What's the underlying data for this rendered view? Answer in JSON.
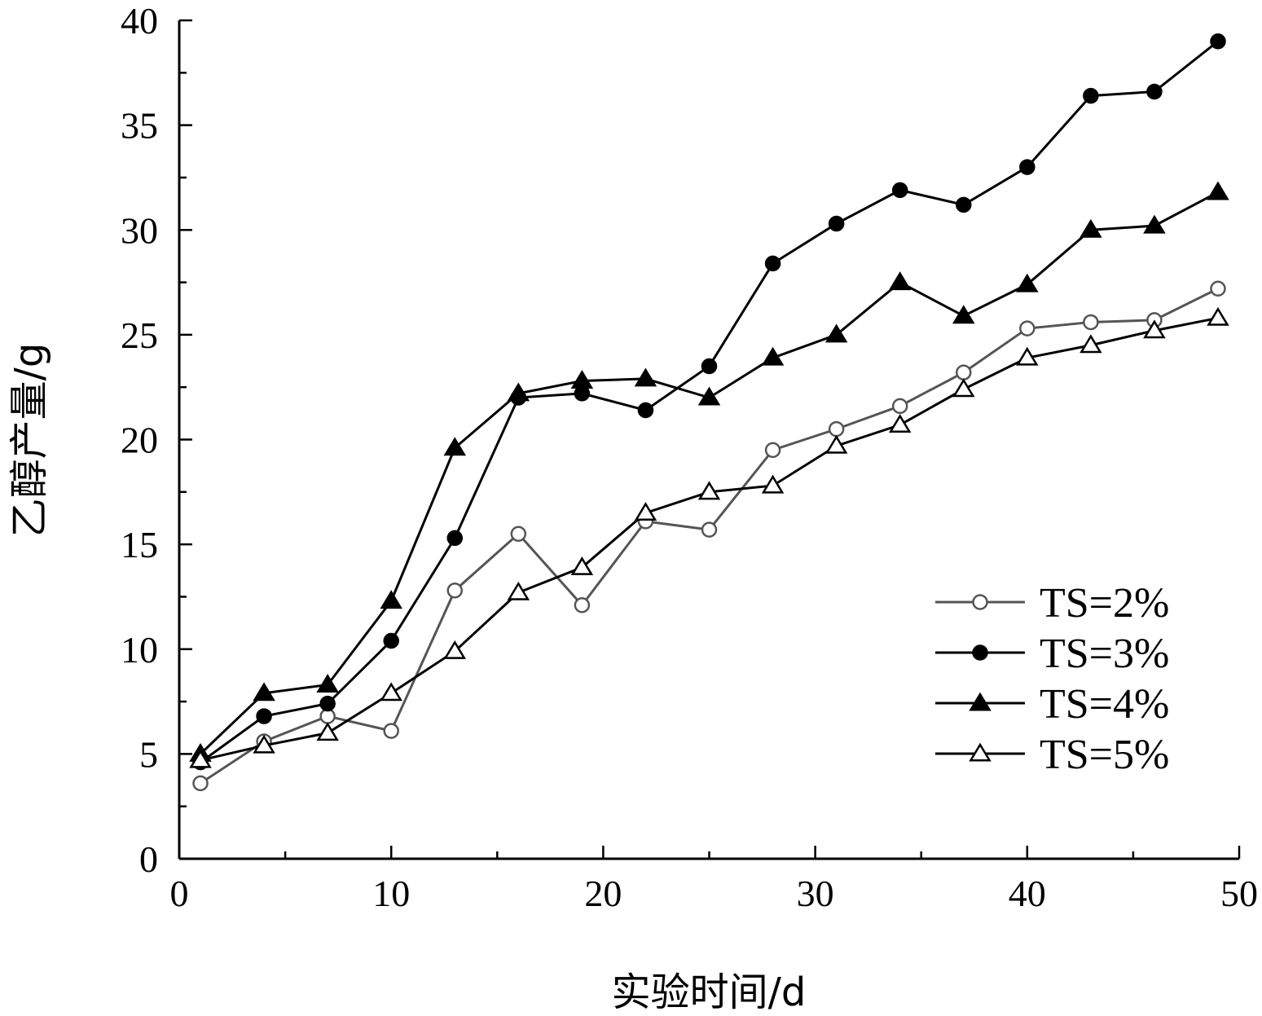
{
  "chart_data": {
    "type": "line",
    "xlabel": "实验时间/d",
    "ylabel": "乙醇产量/g",
    "xlim": [
      0,
      50
    ],
    "ylim": [
      0,
      40
    ],
    "x_ticks": [
      0,
      10,
      20,
      30,
      40,
      50
    ],
    "y_ticks": [
      0,
      5,
      10,
      15,
      20,
      25,
      30,
      35,
      40
    ],
    "x_tick_labels": [
      "0",
      "10",
      "20",
      "30",
      "40",
      "50"
    ],
    "y_tick_labels": [
      "0",
      "5",
      "10",
      "15",
      "20",
      "25",
      "30",
      "35",
      "40"
    ],
    "grid": false,
    "legend_position": "bottom-right",
    "x": [
      1,
      4,
      7,
      10,
      13,
      16,
      19,
      22,
      25,
      28,
      31,
      34,
      37,
      40,
      43,
      46,
      49
    ],
    "series": [
      {
        "name": "TS=2%",
        "marker": "circle-open",
        "color": "#555555",
        "values": [
          3.6,
          5.6,
          6.8,
          6.1,
          12.8,
          15.5,
          12.1,
          16.1,
          15.7,
          19.5,
          20.5,
          21.6,
          23.2,
          25.3,
          25.6,
          25.7,
          27.2
        ]
      },
      {
        "name": "TS=3%",
        "marker": "circle-filled",
        "color": "#000000",
        "values": [
          4.6,
          6.8,
          7.4,
          10.4,
          15.3,
          22.0,
          22.2,
          21.4,
          23.5,
          28.4,
          30.3,
          31.9,
          31.2,
          33.0,
          36.4,
          36.6,
          39.0
        ]
      },
      {
        "name": "TS=4%",
        "marker": "triangle-filled",
        "color": "#000000",
        "values": [
          5.0,
          7.9,
          8.3,
          12.3,
          19.6,
          22.2,
          22.8,
          22.9,
          22.0,
          23.9,
          25.0,
          27.5,
          25.9,
          27.4,
          30.0,
          30.2,
          31.8
        ]
      },
      {
        "name": "TS=5%",
        "marker": "triangle-open",
        "color": "#000000",
        "values": [
          4.7,
          5.4,
          6.0,
          7.9,
          9.9,
          12.7,
          13.9,
          16.5,
          17.5,
          17.8,
          19.7,
          20.7,
          22.4,
          23.9,
          24.5,
          25.2,
          25.8
        ]
      }
    ]
  }
}
